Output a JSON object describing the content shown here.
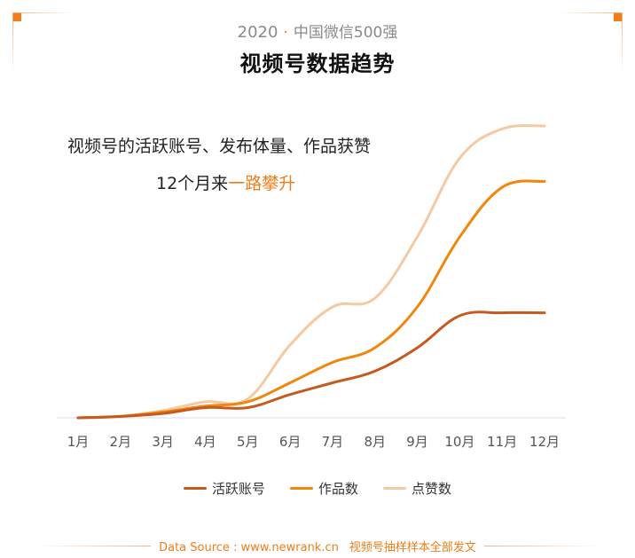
{
  "header": {
    "year": "2020",
    "separator": "·",
    "subtitle": "中国微信500强",
    "title": "视频号数据趋势"
  },
  "annotation": {
    "line1": "视频号的活跃账号、发布体量、作品获赞",
    "line2_prefix": "12个月来",
    "line2_highlight": "一路攀升"
  },
  "chart_data": {
    "type": "line",
    "title": "视频号数据趋势",
    "xlabel": "",
    "ylabel": "",
    "categories": [
      "1月",
      "2月",
      "3月",
      "4月",
      "5月",
      "6月",
      "7月",
      "8月",
      "9月",
      "10月",
      "11月",
      "12月"
    ],
    "ylim": [
      0,
      100
    ],
    "grid": false,
    "legend_position": "bottom",
    "series": [
      {
        "name": "活跃账号",
        "color": "#c65a1e",
        "values": [
          0,
          0.5,
          1.5,
          3.5,
          3.5,
          8,
          12,
          16,
          24,
          35,
          36,
          36
        ]
      },
      {
        "name": "作品数",
        "color": "#f0860e",
        "values": [
          0,
          0.5,
          2,
          4,
          5.5,
          12,
          19,
          24,
          38,
          62,
          79,
          81
        ]
      },
      {
        "name": "点赞数",
        "color": "#f5c9a3",
        "values": [
          0,
          0.5,
          2.5,
          5.5,
          6.5,
          25,
          38,
          41,
          62,
          89,
          99,
          100
        ]
      }
    ]
  },
  "footer": {
    "source": "Data Source : www.newrank.cn",
    "note": "视频号抽样样本全部发文"
  }
}
